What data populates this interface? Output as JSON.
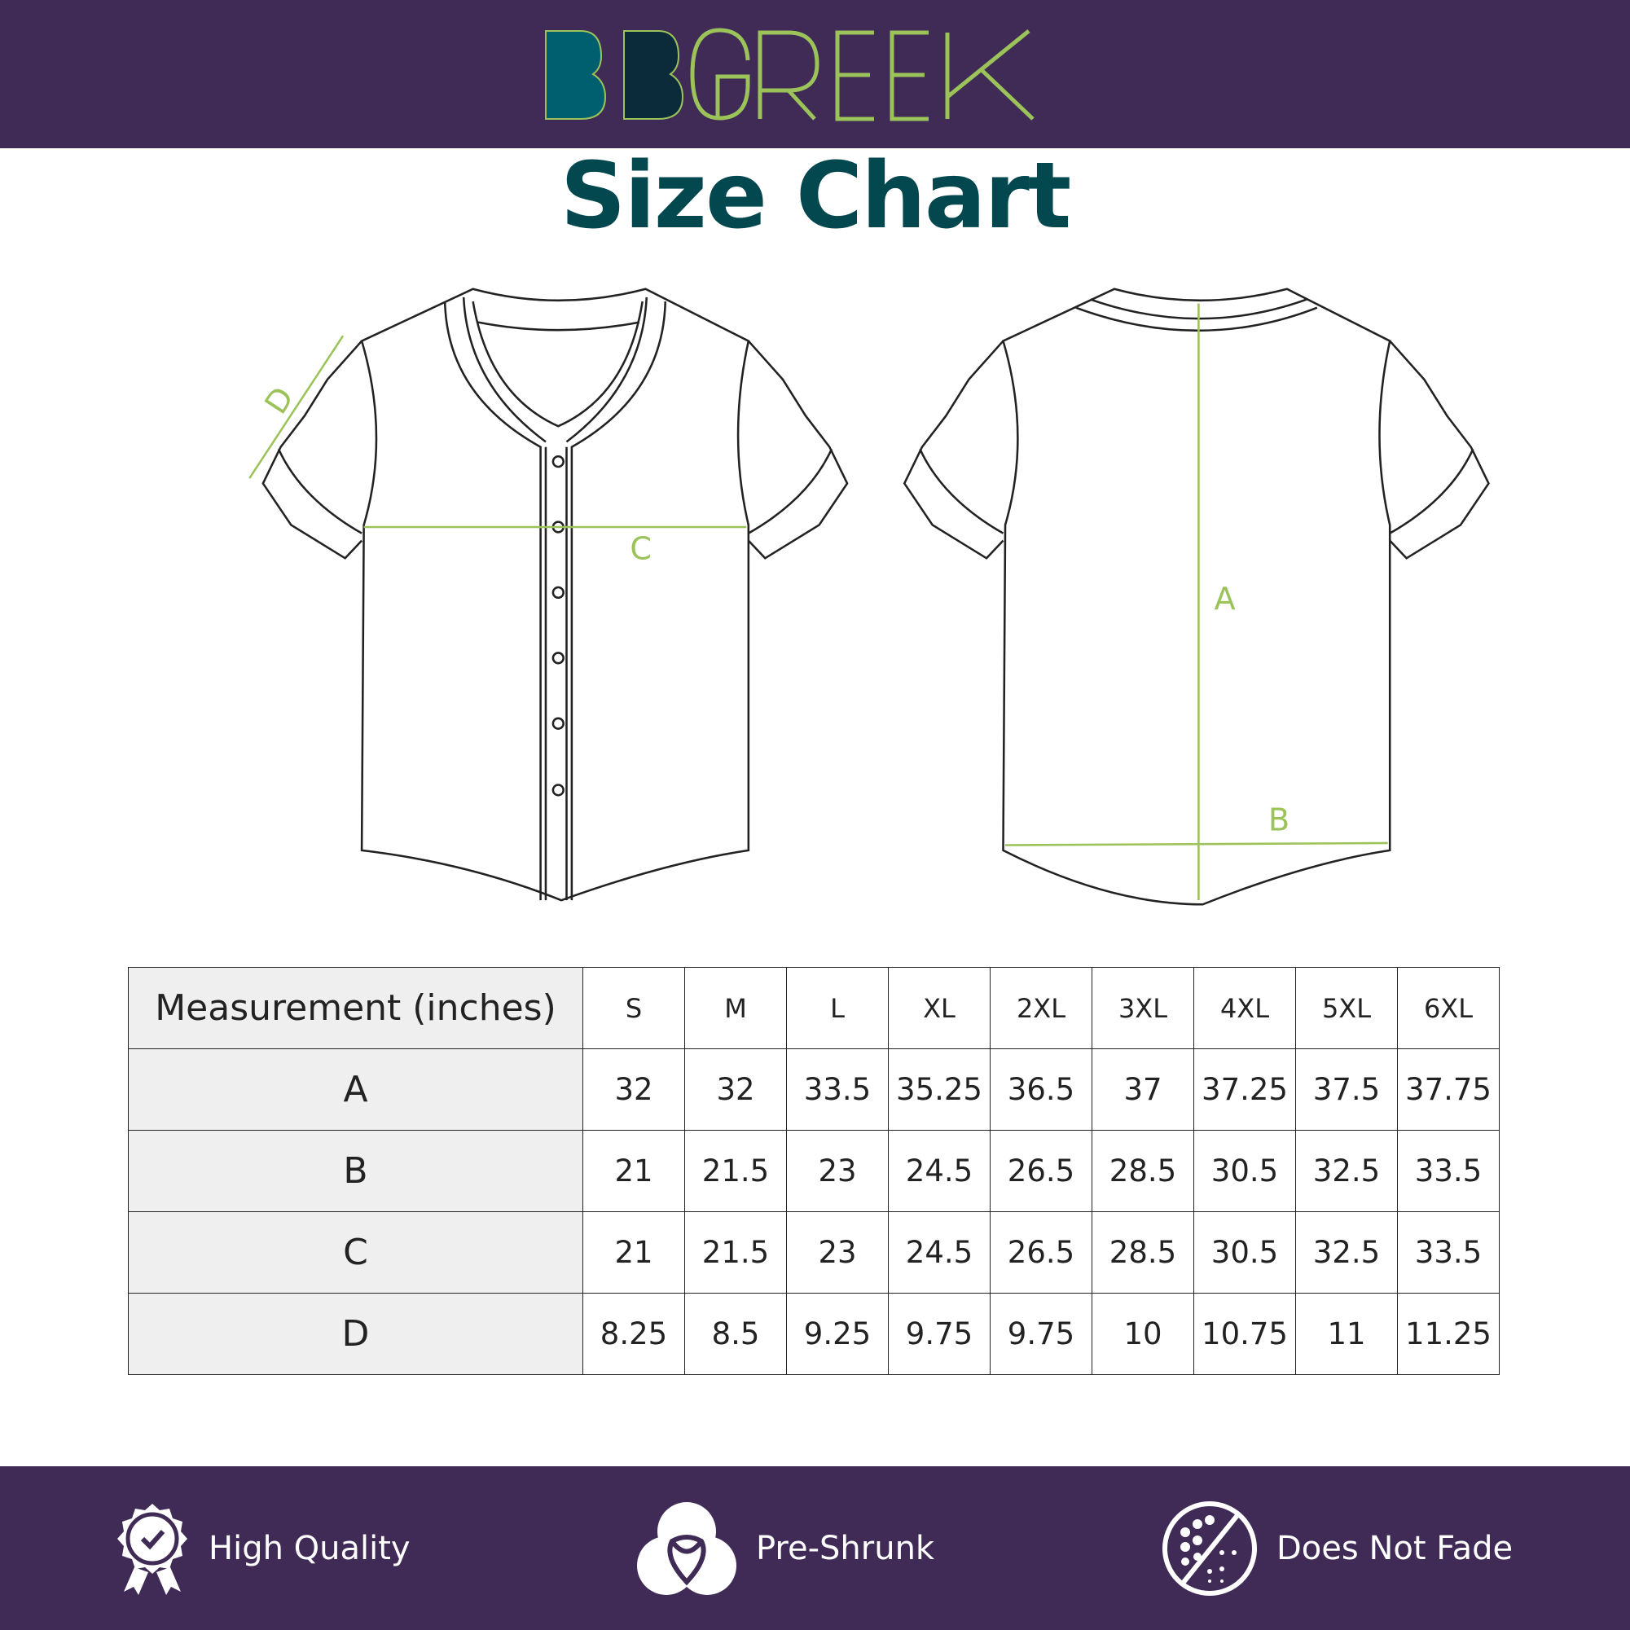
{
  "brand": {
    "logo_text": "BBGREEK",
    "colors": {
      "header_bg": "#3f2b56",
      "teal": "#005f6e",
      "navy": "#0b2a3a",
      "green": "#9bc35a",
      "title": "#03474f"
    }
  },
  "title": "Size Chart",
  "diagram_labels": {
    "a": "A",
    "b": "B",
    "c": "C",
    "d": "D"
  },
  "table": {
    "header": "Measurement (inches)",
    "sizes": [
      "S",
      "M",
      "L",
      "XL",
      "2XL",
      "3XL",
      "4XL",
      "5XL",
      "6XL"
    ],
    "rows": [
      {
        "label": "A",
        "values": [
          "32",
          "32",
          "33.5",
          "35.25",
          "36.5",
          "37",
          "37.25",
          "37.5",
          "37.75"
        ]
      },
      {
        "label": "B",
        "values": [
          "21",
          "21.5",
          "23",
          "24.5",
          "26.5",
          "28.5",
          "30.5",
          "32.5",
          "33.5"
        ]
      },
      {
        "label": "C",
        "values": [
          "21",
          "21.5",
          "23",
          "24.5",
          "26.5",
          "28.5",
          "30.5",
          "32.5",
          "33.5"
        ]
      },
      {
        "label": "D",
        "values": [
          "8.25",
          "8.5",
          "9.25",
          "9.75",
          "9.75",
          "10",
          "10.75",
          "11",
          "11.25"
        ]
      }
    ]
  },
  "features": [
    {
      "icon": "award-badge-icon",
      "label": "High Quality"
    },
    {
      "icon": "pre-shrunk-icon",
      "label": "Pre-Shrunk"
    },
    {
      "icon": "no-fade-icon",
      "label": "Does Not Fade"
    }
  ]
}
